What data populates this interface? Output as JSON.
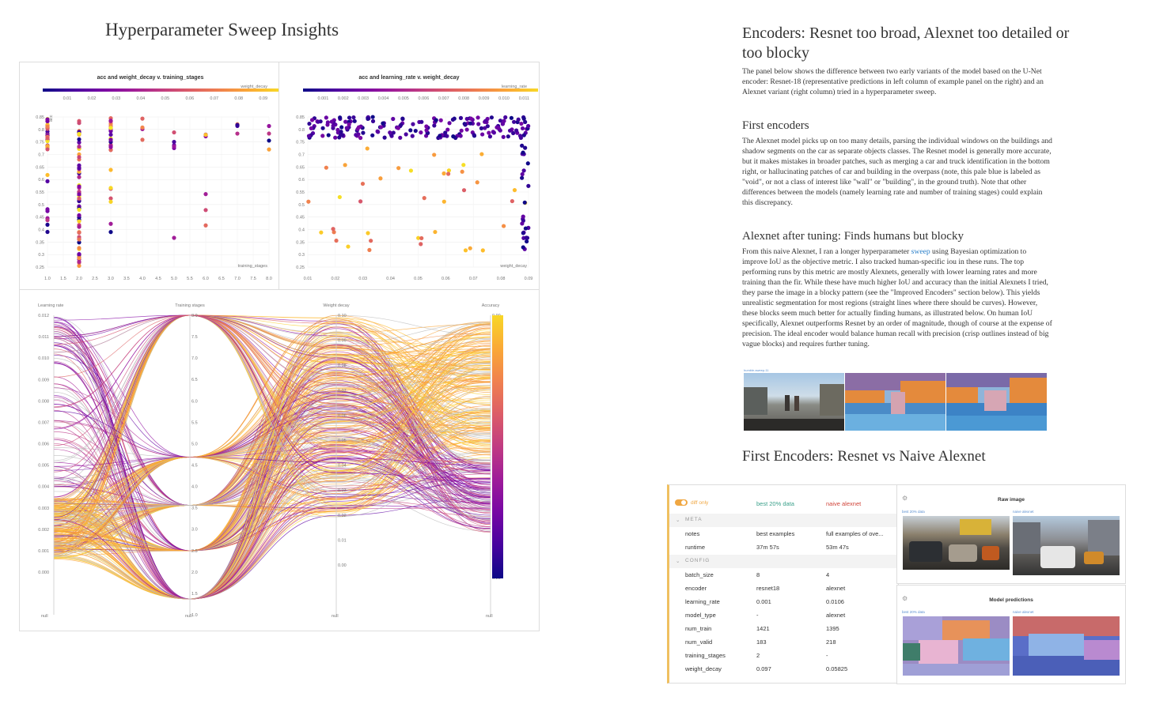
{
  "left": {
    "title": "Hyperparameter Sweep Insights",
    "scatter1": {
      "title": "acc and weight_decay v. training_stages",
      "legend_label": "weight_decay",
      "legend_ticks": [
        "0.01",
        "0.02",
        "0.03",
        "0.04",
        "0.05",
        "0.06",
        "0.07",
        "0.08",
        "0.09"
      ],
      "xlabel": "training_stages",
      "xticks": [
        "1.0",
        "1.5",
        "2.0",
        "2.5",
        "3.0",
        "3.5",
        "4.0",
        "4.5",
        "5.0",
        "5.5",
        "6.0",
        "6.5",
        "7.0",
        "7.5",
        "8.0"
      ],
      "yticks": [
        "0.85",
        "0.8",
        "0.75",
        "0.7",
        "0.65",
        "0.6",
        "0.55",
        "0.5",
        "0.45",
        "0.4",
        "0.35",
        "0.3",
        "0.25"
      ],
      "ylabel": "acc"
    },
    "scatter2": {
      "title": "acc and learning_rate v. weight_decay",
      "legend_label": "learning_rate",
      "legend_ticks": [
        "0.001",
        "0.002",
        "0.003",
        "0.004",
        "0.005",
        "0.006",
        "0.007",
        "0.008",
        "0.009",
        "0.010",
        "0.011"
      ],
      "xlabel": "weight_decay",
      "xticks": [
        "0.01",
        "0.02",
        "0.03",
        "0.04",
        "0.05",
        "0.06",
        "0.07",
        "0.08",
        "0.09"
      ],
      "yticks": [
        "0.85",
        "0.8",
        "0.75",
        "0.7",
        "0.65",
        "0.6",
        "0.55",
        "0.5",
        "0.45",
        "0.4",
        "0.35",
        "0.3",
        "0.25"
      ]
    },
    "parallel": {
      "axes": [
        "Learning rate",
        "Training stages",
        "Weight decay",
        "Accuracy"
      ],
      "lr_ticks": [
        "0.012",
        "0.011",
        "0.010",
        "0.009",
        "0.008",
        "0.007",
        "0.006",
        "0.005",
        "0.004",
        "0.003",
        "0.002",
        "0.001",
        "0.000"
      ],
      "ts_ticks": [
        "8.0",
        "7.5",
        "7.0",
        "6.5",
        "6.0",
        "5.5",
        "5.0",
        "4.5",
        "4.0",
        "3.5",
        "3.0",
        "2.5",
        "2.0",
        "1.5",
        "1.0"
      ],
      "wd_ticks": [
        "0.10",
        "0.09",
        "0.08",
        "0.07",
        "0.06",
        "0.05",
        "0.04",
        "0.03",
        "0.02",
        "0.01",
        "0.00"
      ],
      "acc_ticks": [
        "0.90",
        "0.85",
        "0.80",
        "0.75",
        "0.70",
        "0.65",
        "0.60",
        "0.55",
        "0.50",
        "0.45",
        "0.40",
        "0.35",
        "0.30",
        "0.25",
        "0.20"
      ],
      "null_label": "null"
    }
  },
  "right": {
    "heading1": "Encoders: Resnet too broad, Alexnet too detailed or too blocky",
    "para1": "The panel below shows the difference between two early variants of the model based on the U-Net encoder: Resnet-18 (representative predictions in left column of example panel on the right) and an Alexnet variant (right column) tried in a hyperparameter sweep.",
    "heading2": "First encoders",
    "para2": "The Alexnet model picks up on too many details, parsing the individual windows on the buildings and shadow segments on the car as separate objects classes. The Resnet model is generally more accurate, but it makes mistakes in broader patches, such as merging a car and truck identification in the bottom right, or hallucinating patches of car and building in the overpass (note, this pale blue is labeled as \"void\", or not a class of interest like \"wall\" or \"building\", in the ground truth). Note that other differences between the models (namely learning rate and number of training stages) could explain this discrepancy.",
    "heading3": "Alexnet after tuning: Finds humans but blocky",
    "para3_a": "From this naive Alexnet, I ran a longer hyperparameter ",
    "para3_link": "sweep",
    "para3_b": " using Bayesian optimization to improve IoU as the objective metric. I also tracked human-specific iou in these runs. The top performing runs by this metric are mostly Alexnets, generally with lower learning rates and more training than the fir. While these have much higher IoU and accuracy than the initial Alexnets I tried, they parse the image in a blocky pattern (see the \"Improved Encoders\" section below). This yields unrealistic segmentation for most regions (straight lines where there should be curves). However, these blocks seem much better for actually finding humans, as illustrated below. On human IoU specifically, Alexnet outperforms Resnet by an order of magnitude, though of course at the expense of precision. The ideal encoder would balance human recall with precision (crisp outlines instead of big vague blocks) and requires further tuning.",
    "image_caption": "humble-sweep-11",
    "heading4": "First Encoders: Resnet vs Naive Alexnet"
  },
  "table": {
    "toggle_label": "diff only",
    "col1": "best 20% data",
    "col2": "naive alexnet",
    "meta_label": "META",
    "config_label": "CONFIG",
    "meta_rows": [
      {
        "key": "notes",
        "v1": "best examples",
        "v2": "full examples of ove..."
      },
      {
        "key": "runtime",
        "v1": "37m 57s",
        "v2": "53m 47s"
      }
    ],
    "config_rows": [
      {
        "key": "batch_size",
        "v1": "8",
        "v2": "4"
      },
      {
        "key": "encoder",
        "v1": "resnet18",
        "v2": "alexnet"
      },
      {
        "key": "learning_rate",
        "v1": "0.001",
        "v2": "0.0106"
      },
      {
        "key": "model_type",
        "v1": "-",
        "v2": "alexnet"
      },
      {
        "key": "num_train",
        "v1": "1421",
        "v2": "1395"
      },
      {
        "key": "num_valid",
        "v1": "183",
        "v2": "218"
      },
      {
        "key": "training_stages",
        "v1": "2",
        "v2": "-"
      },
      {
        "key": "weight_decay",
        "v1": "0.097",
        "v2": "0.05825"
      }
    ]
  },
  "media": {
    "raw_title": "Raw image",
    "pred_title": "Model predictions",
    "label_a": "best 20% data",
    "label_b": "naive alexnet"
  },
  "colors": {
    "accent_orange": "#f0a742",
    "purple": "#2d0c8a",
    "teal": "#3aa08a",
    "red": "#d0443a"
  }
}
